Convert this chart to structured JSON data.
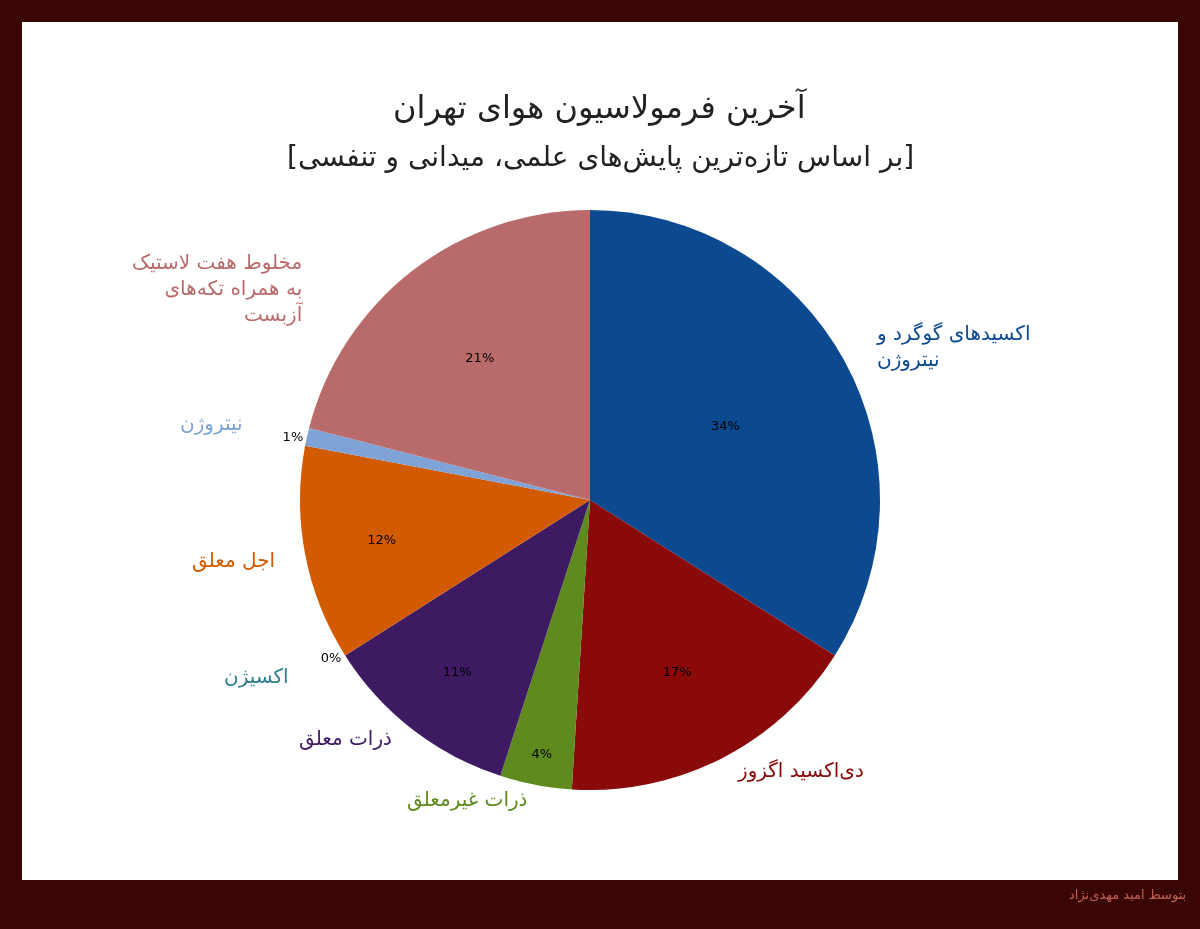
{
  "chart_data": {
    "type": "pie",
    "title": "آخرین فرمولاسیون هوای تهران",
    "subtitle": "[بر اساس تازه‌ترین پایش‌های علمی، میدانی و تنفسی]",
    "categories": [
      "اکسیدهای گوگرد و نیتروژن",
      "دی‌اکسید اگزوز",
      "ذرات غیرمعلق",
      "ذرات معلق",
      "اکسیژن",
      "اجل معلق",
      "نیتروژن",
      "مخلوط هفت لاستیک به همراه تکه‌های آزبست"
    ],
    "values": [
      34,
      17,
      4,
      11,
      0,
      12,
      1,
      21
    ],
    "value_labels": [
      "34%",
      "17%",
      "4%",
      "11%",
      "0%",
      "12%",
      "1%",
      "21%"
    ],
    "colors": [
      "#0b4a90",
      "#8a0a0a",
      "#5e8a1e",
      "#3d1a62",
      "#2f7f90",
      "#d25a00",
      "#7fa3d6",
      "#b96a6a"
    ],
    "annotations": [
      "بتوسط امید مهدی‌نژاد"
    ],
    "legend": false
  }
}
